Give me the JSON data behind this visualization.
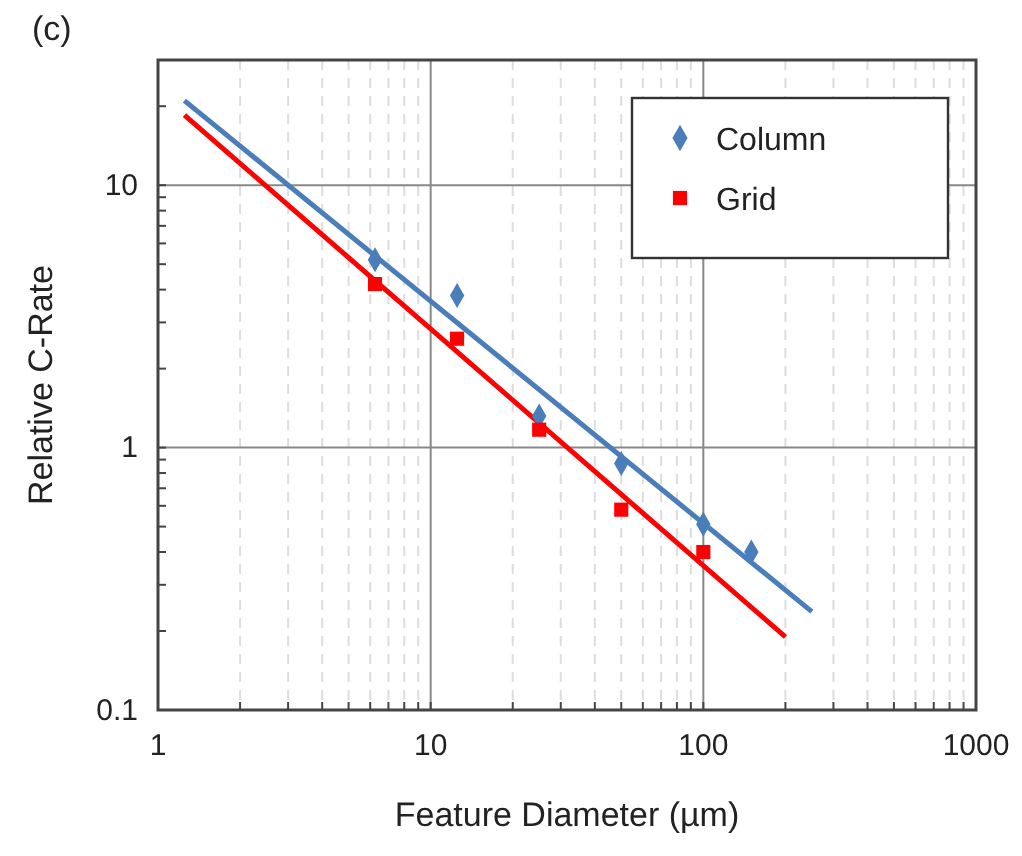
{
  "chart_data": {
    "type": "scatter",
    "title": "(c)",
    "xlabel": "Feature Diameter (µm)",
    "ylabel": "Relative C-Rate",
    "log": "xy",
    "grid": true,
    "legend": "top right",
    "xlim": [
      1,
      1000
    ],
    "ylim": [
      0.1,
      30
    ],
    "xticks": [
      1,
      {
        "value": 2,
        "label": null
      },
      {
        "value": 3,
        "label": null
      },
      {
        "value": 4,
        "label": null
      },
      {
        "value": 5,
        "label": null
      },
      {
        "value": 6,
        "label": null
      },
      {
        "value": 7,
        "label": null
      },
      {
        "value": 8,
        "label": null
      },
      {
        "value": 9,
        "label": null
      },
      10,
      {
        "value": 20,
        "label": null
      },
      {
        "value": 30,
        "label": null
      },
      {
        "value": 40,
        "label": null
      },
      {
        "value": 50,
        "label": null
      },
      {
        "value": 60,
        "label": null
      },
      {
        "value": 70,
        "label": null
      },
      {
        "value": 80,
        "label": null
      },
      {
        "value": 90,
        "label": null
      },
      100,
      {
        "value": 200,
        "label": null
      },
      {
        "value": 300,
        "label": null
      },
      {
        "value": 400,
        "label": null
      },
      {
        "value": 500,
        "label": null
      },
      {
        "value": 600,
        "label": null
      },
      {
        "value": 700,
        "label": null
      },
      {
        "value": 800,
        "label": null
      },
      {
        "value": 900,
        "label": null
      },
      1000
    ],
    "yticks": [
      0.1,
      {
        "value": 0.2,
        "label": null
      },
      {
        "value": 0.3,
        "label": null
      },
      {
        "value": 0.4,
        "label": null
      },
      {
        "value": 0.5,
        "label": null
      },
      {
        "value": 0.6,
        "label": null
      },
      {
        "value": 0.7,
        "label": null
      },
      {
        "value": 0.8,
        "label": null
      },
      {
        "value": 0.9,
        "label": null
      },
      1,
      {
        "value": 2,
        "label": null
      },
      {
        "value": 3,
        "label": null
      },
      {
        "value": 4,
        "label": null
      },
      {
        "value": 5,
        "label": null
      },
      {
        "value": 6,
        "label": null
      },
      {
        "value": 7,
        "label": null
      },
      {
        "value": 8,
        "label": null
      },
      {
        "value": 9,
        "label": null
      },
      10,
      {
        "value": 20,
        "label": null
      }
    ],
    "series": [
      {
        "type": "line",
        "color": "#4a7ebb",
        "x": [
          1.25,
          250
        ],
        "values": [
          21,
          0.237
        ],
        "marker": "none"
      },
      {
        "type": "line",
        "color": "#ff0000",
        "x": [
          1.25,
          200
        ],
        "values": [
          18.5,
          0.19
        ],
        "marker": "none"
      },
      {
        "name": "Column",
        "color": "#4a7ebb",
        "marker": "diamond",
        "x": [
          6.25,
          12.5,
          25,
          50,
          100,
          150
        ],
        "values": [
          5.2,
          3.8,
          1.32,
          0.87,
          0.51,
          0.4
        ]
      },
      {
        "name": "Grid",
        "color": "#ff0000",
        "marker": "square",
        "x": [
          6.25,
          12.5,
          25,
          50,
          100
        ],
        "values": [
          4.2,
          2.6,
          1.17,
          0.58,
          0.4
        ]
      }
    ]
  }
}
